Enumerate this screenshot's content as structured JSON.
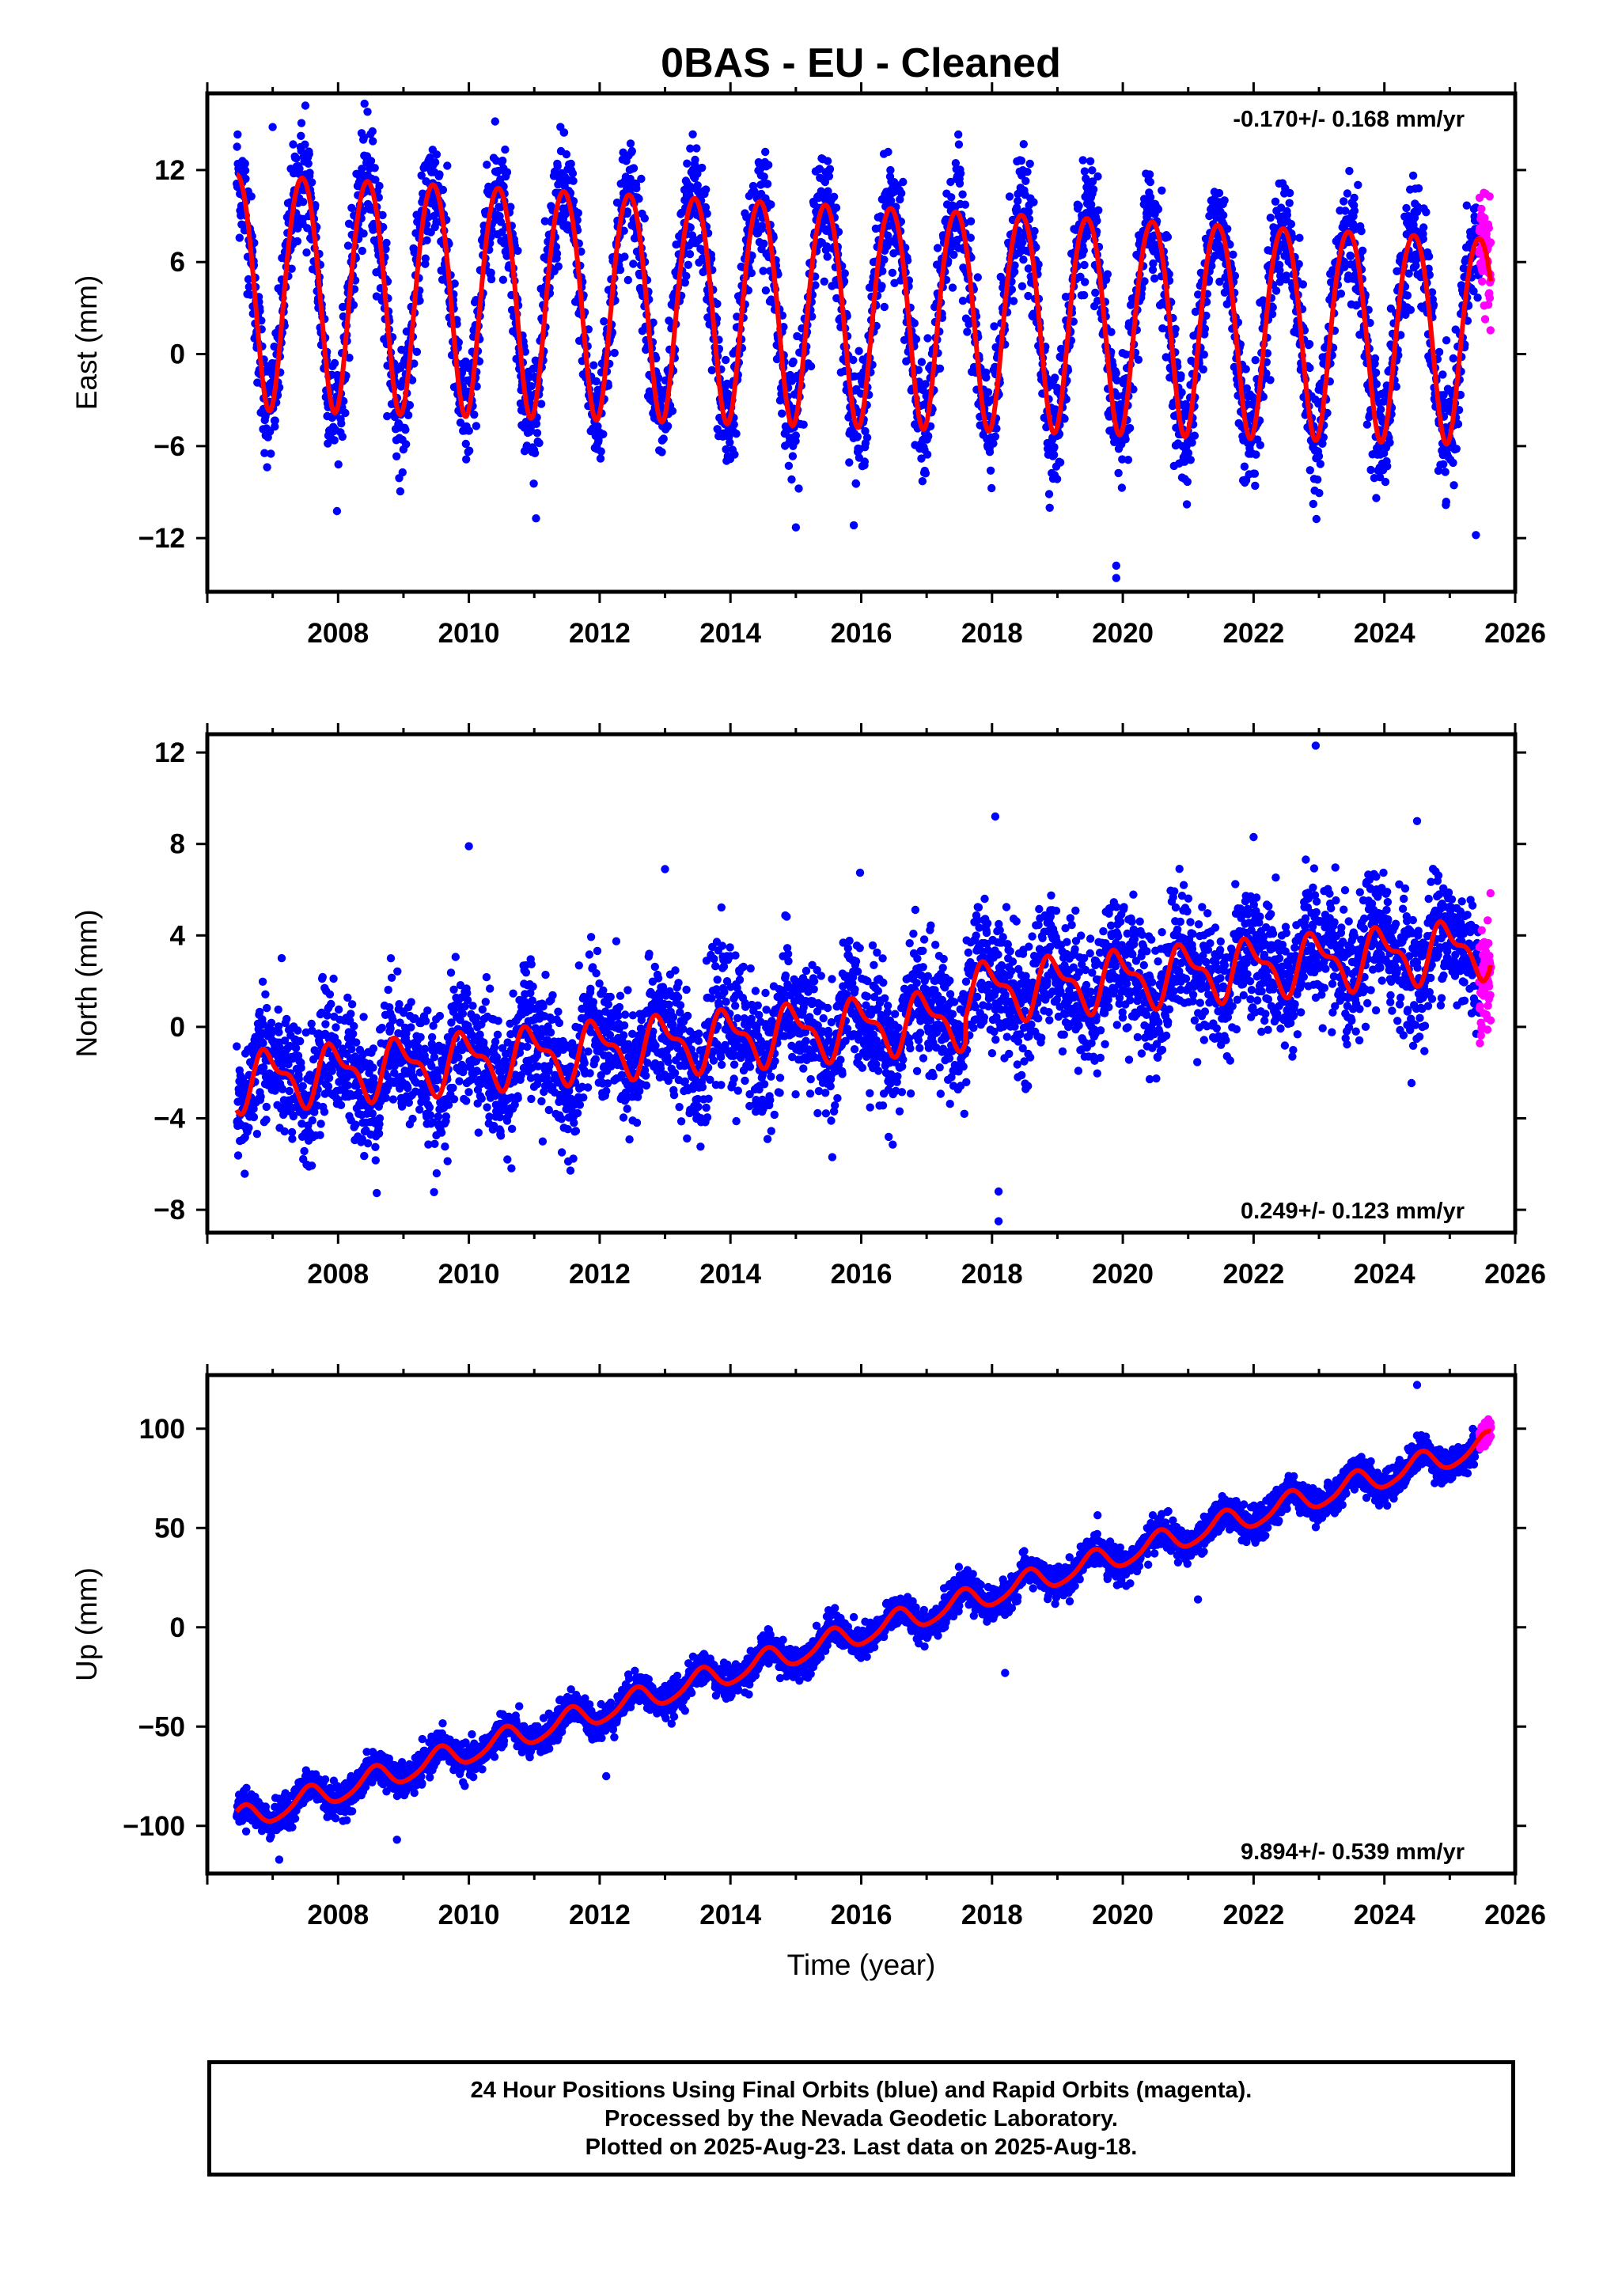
{
  "title": "0BAS  - EU - Cleaned",
  "colors": {
    "final_orbits": "#0000ff",
    "rapid_orbits": "#ff00ff",
    "model_fit": "#ff0000",
    "frame": "#000000"
  },
  "footer": {
    "line1": "24 Hour Positions Using Final Orbits (blue) and Rapid Orbits (magenta).",
    "line2": "Processed by the Nevada Geodetic Laboratory.",
    "line3": "Plotted on 2025-Aug-23. Last data on 2025-Aug-18."
  },
  "chart_data": [
    {
      "type": "scatter",
      "panel": "east",
      "ylabel": "East (mm)",
      "xlabel": "",
      "xlim": [
        2006.0,
        2026.0
      ],
      "ylim": [
        -15.5,
        17.0
      ],
      "x_ticks": [
        "2008",
        "2010",
        "2012",
        "2014",
        "2016",
        "2018",
        "2020",
        "2022",
        "2024",
        "2026"
      ],
      "y_ticks": [
        "12",
        "6",
        "0",
        "−6",
        "−12"
      ],
      "y_tick_values": [
        12,
        6,
        0,
        -6,
        -12
      ],
      "rate_text": "-0.170+/- 0.168 mm/yr",
      "rate_position": "top-right",
      "model": {
        "start": 2006.45,
        "end": 2025.63,
        "intercept": 3.0,
        "ref_year": 2016.0,
        "rate": -0.17,
        "annual_amp": 7.2,
        "annual_amp_trend": -0.05,
        "annual_peak": 0.45,
        "semi_amp": 0.6,
        "semi_peak": 0.2
      },
      "noise_mm": 1.9,
      "outliers": [
        {
          "x": 2019.9,
          "y": -14.6
        },
        {
          "x": 2019.9,
          "y": -13.8
        },
        {
          "x": 2007.0,
          "y": 14.8
        },
        {
          "x": 2008.45,
          "y": 15.8
        },
        {
          "x": 2007.5,
          "y": 16.2
        },
        {
          "x": 2025.4,
          "y": -11.8
        },
        {
          "x": 2015.0,
          "y": -11.3
        }
      ],
      "series": [
        {
          "name": "Final Orbits",
          "color": "#0000ff",
          "x_range": [
            2006.45,
            2025.45
          ]
        },
        {
          "name": "Rapid Orbits",
          "color": "#ff00ff",
          "x_range": [
            2025.45,
            2025.63
          ]
        },
        {
          "name": "Model",
          "color": "#ff0000"
        }
      ]
    },
    {
      "type": "scatter",
      "panel": "north",
      "ylabel": "North (mm)",
      "xlabel": "",
      "xlim": [
        2006.0,
        2026.0
      ],
      "ylim": [
        -9.0,
        12.8
      ],
      "x_ticks": [
        "2008",
        "2010",
        "2012",
        "2014",
        "2016",
        "2018",
        "2020",
        "2022",
        "2024",
        "2026"
      ],
      "y_ticks": [
        "12",
        "8",
        "4",
        "0",
        "−4",
        "−8"
      ],
      "y_tick_values": [
        12,
        8,
        4,
        0,
        -4,
        -8
      ],
      "rate_text": "0.249+/- 0.123 mm/yr",
      "rate_position": "bottom-right",
      "model": {
        "start": 2006.45,
        "end": 2025.63,
        "intercept": 0.0,
        "ref_year": 2016.0,
        "rate": 0.249,
        "annual_amp": 1.1,
        "annual_amp_trend": 0.0,
        "annual_peak": 0.95,
        "semi_amp": 0.5,
        "semi_peak": 0.3,
        "offset_year": 2017.6,
        "offset_value": 1.1
      },
      "noise_mm": 1.4,
      "outliers": [
        {
          "x": 2018.1,
          "y": -8.5
        },
        {
          "x": 2018.1,
          "y": -7.2
        },
        {
          "x": 2018.05,
          "y": 9.2
        },
        {
          "x": 2022.95,
          "y": 12.3
        },
        {
          "x": 2010.0,
          "y": 7.9
        },
        {
          "x": 2013.0,
          "y": 6.9
        },
        {
          "x": 2022.0,
          "y": 8.3
        },
        {
          "x": 2024.5,
          "y": 9.0
        }
      ],
      "series": [
        {
          "name": "Final Orbits",
          "color": "#0000ff",
          "x_range": [
            2006.45,
            2025.45
          ]
        },
        {
          "name": "Rapid Orbits",
          "color": "#ff00ff",
          "x_range": [
            2025.45,
            2025.63
          ]
        },
        {
          "name": "Model",
          "color": "#ff0000"
        }
      ]
    },
    {
      "type": "scatter",
      "panel": "up",
      "ylabel": "Up (mm)",
      "xlabel": "Time (year)",
      "xlim": [
        2006.0,
        2026.0
      ],
      "ylim": [
        -124.0,
        127.0
      ],
      "x_ticks": [
        "2008",
        "2010",
        "2012",
        "2014",
        "2016",
        "2018",
        "2020",
        "2022",
        "2024",
        "2026"
      ],
      "y_ticks": [
        "100",
        "50",
        "0",
        "−50",
        "−100"
      ],
      "y_tick_values": [
        100,
        50,
        0,
        -50,
        -100
      ],
      "rate_text": "9.894+/- 0.539 mm/yr",
      "rate_position": "bottom-right",
      "model": {
        "start": 2006.45,
        "end": 2025.63,
        "intercept": -3.0,
        "ref_year": 2016.0,
        "rate": 9.894,
        "annual_amp": 6.0,
        "annual_amp_trend": 0.0,
        "annual_peak": 0.55,
        "semi_amp": 1.0,
        "semi_peak": 0.1
      },
      "noise_mm": 4.0,
      "outliers": [
        {
          "x": 2007.1,
          "y": -117.0
        },
        {
          "x": 2008.9,
          "y": -107.0
        },
        {
          "x": 2021.15,
          "y": 14.0
        },
        {
          "x": 2024.5,
          "y": 122.0
        },
        {
          "x": 2018.2,
          "y": -23.0
        },
        {
          "x": 2012.1,
          "y": -75.0
        }
      ],
      "series": [
        {
          "name": "Final Orbits",
          "color": "#0000ff",
          "x_range": [
            2006.45,
            2025.45
          ]
        },
        {
          "name": "Rapid Orbits",
          "color": "#ff00ff",
          "x_range": [
            2025.45,
            2025.63
          ]
        },
        {
          "name": "Model",
          "color": "#ff0000"
        }
      ]
    }
  ]
}
